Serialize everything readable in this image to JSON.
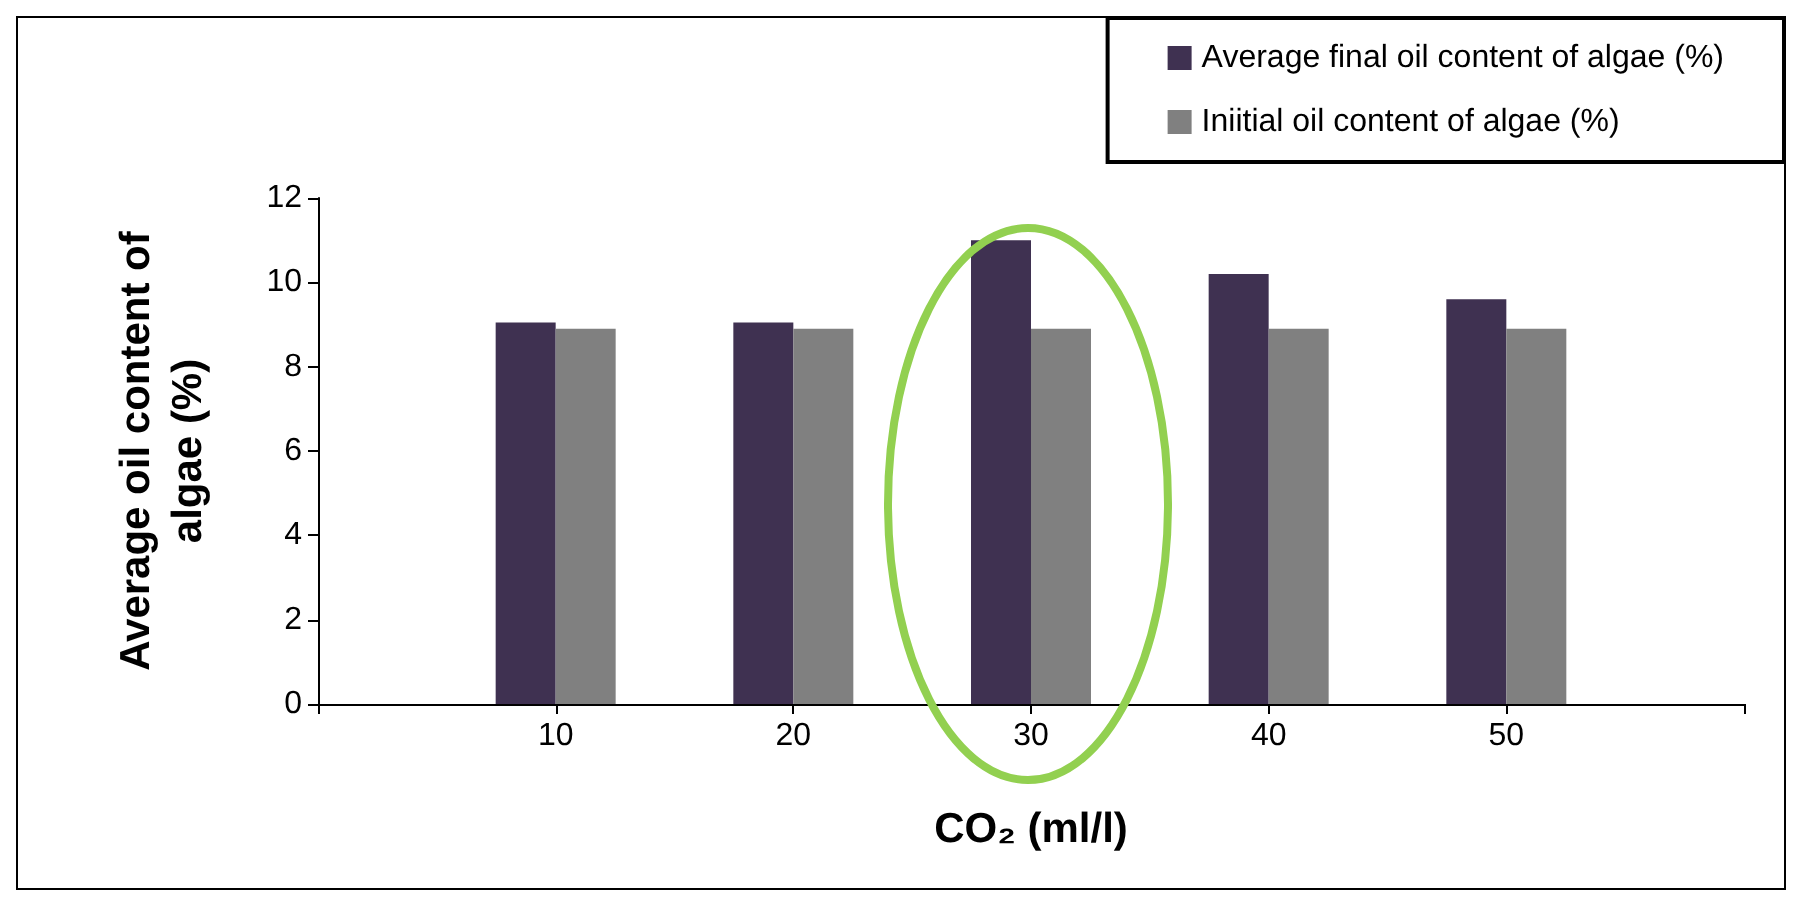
{
  "chart_data": {
    "type": "bar",
    "xlabel": "CO₂ (ml/l)",
    "ylabel": "Average oil content of\nalgae (%)",
    "categories": [
      null,
      "10",
      "20",
      "30",
      "40",
      "50",
      null
    ],
    "series": [
      {
        "name": "Average final oil content of algae (%)",
        "color": "#3f3151",
        "values": [
          null,
          9.05,
          9.05,
          11.0,
          10.2,
          9.6,
          null
        ]
      },
      {
        "name": "Iniitial oil content of algae (%)",
        "color": "#808080",
        "values": [
          null,
          8.9,
          8.9,
          8.9,
          8.9,
          8.9,
          null
        ]
      }
    ],
    "ylim": [
      0,
      12
    ],
    "yticks": [
      0,
      2,
      4,
      6,
      8,
      10,
      12
    ],
    "grid": false,
    "legend": "top right"
  }
}
